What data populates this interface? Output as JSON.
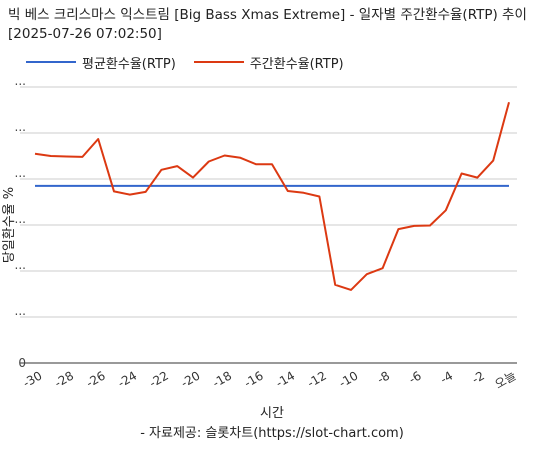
{
  "title": "빅 베스 크리스마스 익스트림 [Big Bass Xmas Extreme] - 일자별 주간환수율(RTP) 추이 [2025-07-26 07:02:50]",
  "source": "- 자료제공: 슬롯차트(https://slot-chart.com)",
  "colors": {
    "avg": "#3366cc",
    "weekly": "#dc3912",
    "grid": "#cccccc",
    "baseline": "#333333"
  },
  "chart_data": {
    "type": "line",
    "title": "빅 베스 크리스마스 익스트림 [Big Bass Xmas Extreme] - 일자별 주간환수율(RTP) 추이 [2025-07-26 07:02:50]",
    "xlabel": "시간",
    "ylabel": "당일환수율 %",
    "x": [
      -30,
      -29,
      -28,
      -27,
      -26,
      -25,
      -24,
      -23,
      -22,
      -21,
      -20,
      -19,
      -18,
      -17,
      -16,
      -15,
      -14,
      -13,
      -12,
      -11,
      -10,
      -9,
      -8,
      -7,
      -6,
      -5,
      -4,
      -3,
      -2,
      -1,
      0
    ],
    "x_ticks": [
      {
        "x": -30,
        "label": "-30"
      },
      {
        "x": -28,
        "label": "-28"
      },
      {
        "x": -26,
        "label": "-26"
      },
      {
        "x": -24,
        "label": "-24"
      },
      {
        "x": -22,
        "label": "-22"
      },
      {
        "x": -20,
        "label": "-20"
      },
      {
        "x": -18,
        "label": "-18"
      },
      {
        "x": -16,
        "label": "-16"
      },
      {
        "x": -14,
        "label": "-14"
      },
      {
        "x": -12,
        "label": "-12"
      },
      {
        "x": -10,
        "label": "-10"
      },
      {
        "x": -8,
        "label": "-8"
      },
      {
        "x": -6,
        "label": "-6"
      },
      {
        "x": -4,
        "label": "-4"
      },
      {
        "x": -2,
        "label": "-2"
      },
      {
        "x": 0,
        "label": "오늘"
      }
    ],
    "y_ticks": [
      "0",
      "...",
      "...",
      "...",
      "...",
      "...",
      "..."
    ],
    "ylim": [
      0,
      6
    ],
    "grid": true,
    "legend_position": "top-left",
    "series": [
      {
        "name": "평균환수율(RTP)",
        "color": "#3366cc",
        "values": [
          3.85,
          3.85,
          3.85,
          3.85,
          3.85,
          3.85,
          3.85,
          3.85,
          3.85,
          3.85,
          3.85,
          3.85,
          3.85,
          3.85,
          3.85,
          3.85,
          3.85,
          3.85,
          3.85,
          3.85,
          3.85,
          3.85,
          3.85,
          3.85,
          3.85,
          3.85,
          3.85,
          3.85,
          3.85,
          3.85,
          3.85
        ]
      },
      {
        "name": "주간환수율(RTP)",
        "color": "#dc3912",
        "values": [
          4.55,
          4.5,
          4.49,
          4.48,
          4.87,
          3.73,
          3.66,
          3.72,
          4.2,
          4.28,
          4.03,
          4.38,
          4.51,
          4.46,
          4.32,
          4.32,
          3.74,
          3.7,
          3.62,
          1.7,
          1.59,
          1.93,
          2.06,
          2.91,
          2.98,
          2.99,
          3.32,
          4.12,
          4.03,
          4.4,
          5.67
        ]
      }
    ]
  }
}
